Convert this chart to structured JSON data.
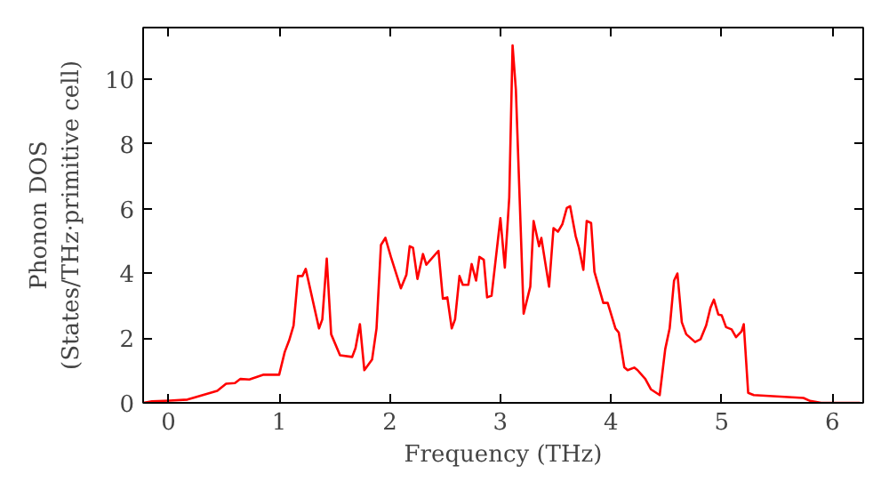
{
  "chart_data": {
    "type": "line",
    "xlabel": "Frequency (THz)",
    "ylabel": "Phonon DOS\n(States/THz·primitive cell)",
    "xlim": [
      -0.23,
      6.28
    ],
    "ylim": [
      0,
      11.6
    ],
    "xticks": [
      0,
      1,
      2,
      3,
      4,
      5,
      6
    ],
    "yticks": [
      0,
      2,
      4,
      6,
      8,
      10
    ],
    "grid": false,
    "series": [
      {
        "color": "#ff0000",
        "x": [
          -0.23,
          -0.15,
          0.01,
          0.17,
          0.22,
          0.44,
          0.52,
          0.6,
          0.65,
          0.73,
          0.86,
          1.0,
          1.05,
          1.09,
          1.13,
          1.17,
          1.21,
          1.24,
          1.36,
          1.39,
          1.43,
          1.47,
          1.55,
          1.66,
          1.69,
          1.73,
          1.77,
          1.84,
          1.88,
          1.92,
          1.96,
          2.01,
          2.1,
          2.15,
          2.18,
          2.21,
          2.25,
          2.3,
          2.33,
          2.44,
          2.48,
          2.52,
          2.56,
          2.59,
          2.63,
          2.66,
          2.71,
          2.74,
          2.78,
          2.81,
          2.85,
          2.88,
          2.92,
          3.0,
          3.04,
          3.08,
          3.11,
          3.14,
          3.21,
          3.27,
          3.3,
          3.35,
          3.37,
          3.44,
          3.48,
          3.52,
          3.56,
          3.6,
          3.63,
          3.68,
          3.71,
          3.75,
          3.78,
          3.82,
          3.85,
          3.93,
          3.97,
          4.04,
          4.07,
          4.12,
          4.15,
          4.21,
          4.24,
          4.31,
          4.36,
          4.44,
          4.49,
          4.53,
          4.57,
          4.6,
          4.64,
          4.68,
          4.76,
          4.81,
          4.86,
          4.9,
          4.93,
          4.97,
          5.0,
          5.04,
          5.09,
          5.13,
          5.18,
          5.2,
          5.24,
          5.29,
          5.74,
          5.8,
          5.9,
          6.25
        ],
        "values": [
          0.0,
          0.05,
          0.07,
          0.1,
          0.15,
          0.37,
          0.59,
          0.61,
          0.74,
          0.72,
          0.87,
          0.87,
          1.57,
          1.93,
          2.39,
          3.92,
          3.92,
          4.14,
          2.3,
          2.58,
          4.46,
          2.12,
          1.47,
          1.42,
          1.69,
          2.43,
          1.01,
          1.34,
          2.3,
          4.88,
          5.1,
          4.51,
          3.54,
          3.96,
          4.84,
          4.79,
          3.83,
          4.6,
          4.27,
          4.7,
          3.22,
          3.26,
          2.3,
          2.58,
          3.92,
          3.65,
          3.65,
          4.29,
          3.78,
          4.51,
          4.42,
          3.26,
          3.31,
          5.71,
          4.18,
          6.35,
          11.05,
          9.67,
          2.76,
          3.59,
          5.62,
          4.84,
          5.1,
          3.59,
          5.4,
          5.29,
          5.52,
          6.02,
          6.08,
          5.16,
          4.79,
          4.11,
          5.62,
          5.56,
          4.05,
          3.09,
          3.09,
          2.3,
          2.17,
          1.1,
          1.01,
          1.09,
          1.01,
          0.74,
          0.42,
          0.24,
          1.66,
          2.3,
          3.78,
          4.0,
          2.49,
          2.12,
          1.88,
          1.97,
          2.39,
          2.95,
          3.19,
          2.73,
          2.71,
          2.34,
          2.27,
          2.03,
          2.21,
          2.43,
          0.31,
          0.24,
          0.15,
          0.06,
          0.0,
          0.0
        ]
      }
    ]
  }
}
